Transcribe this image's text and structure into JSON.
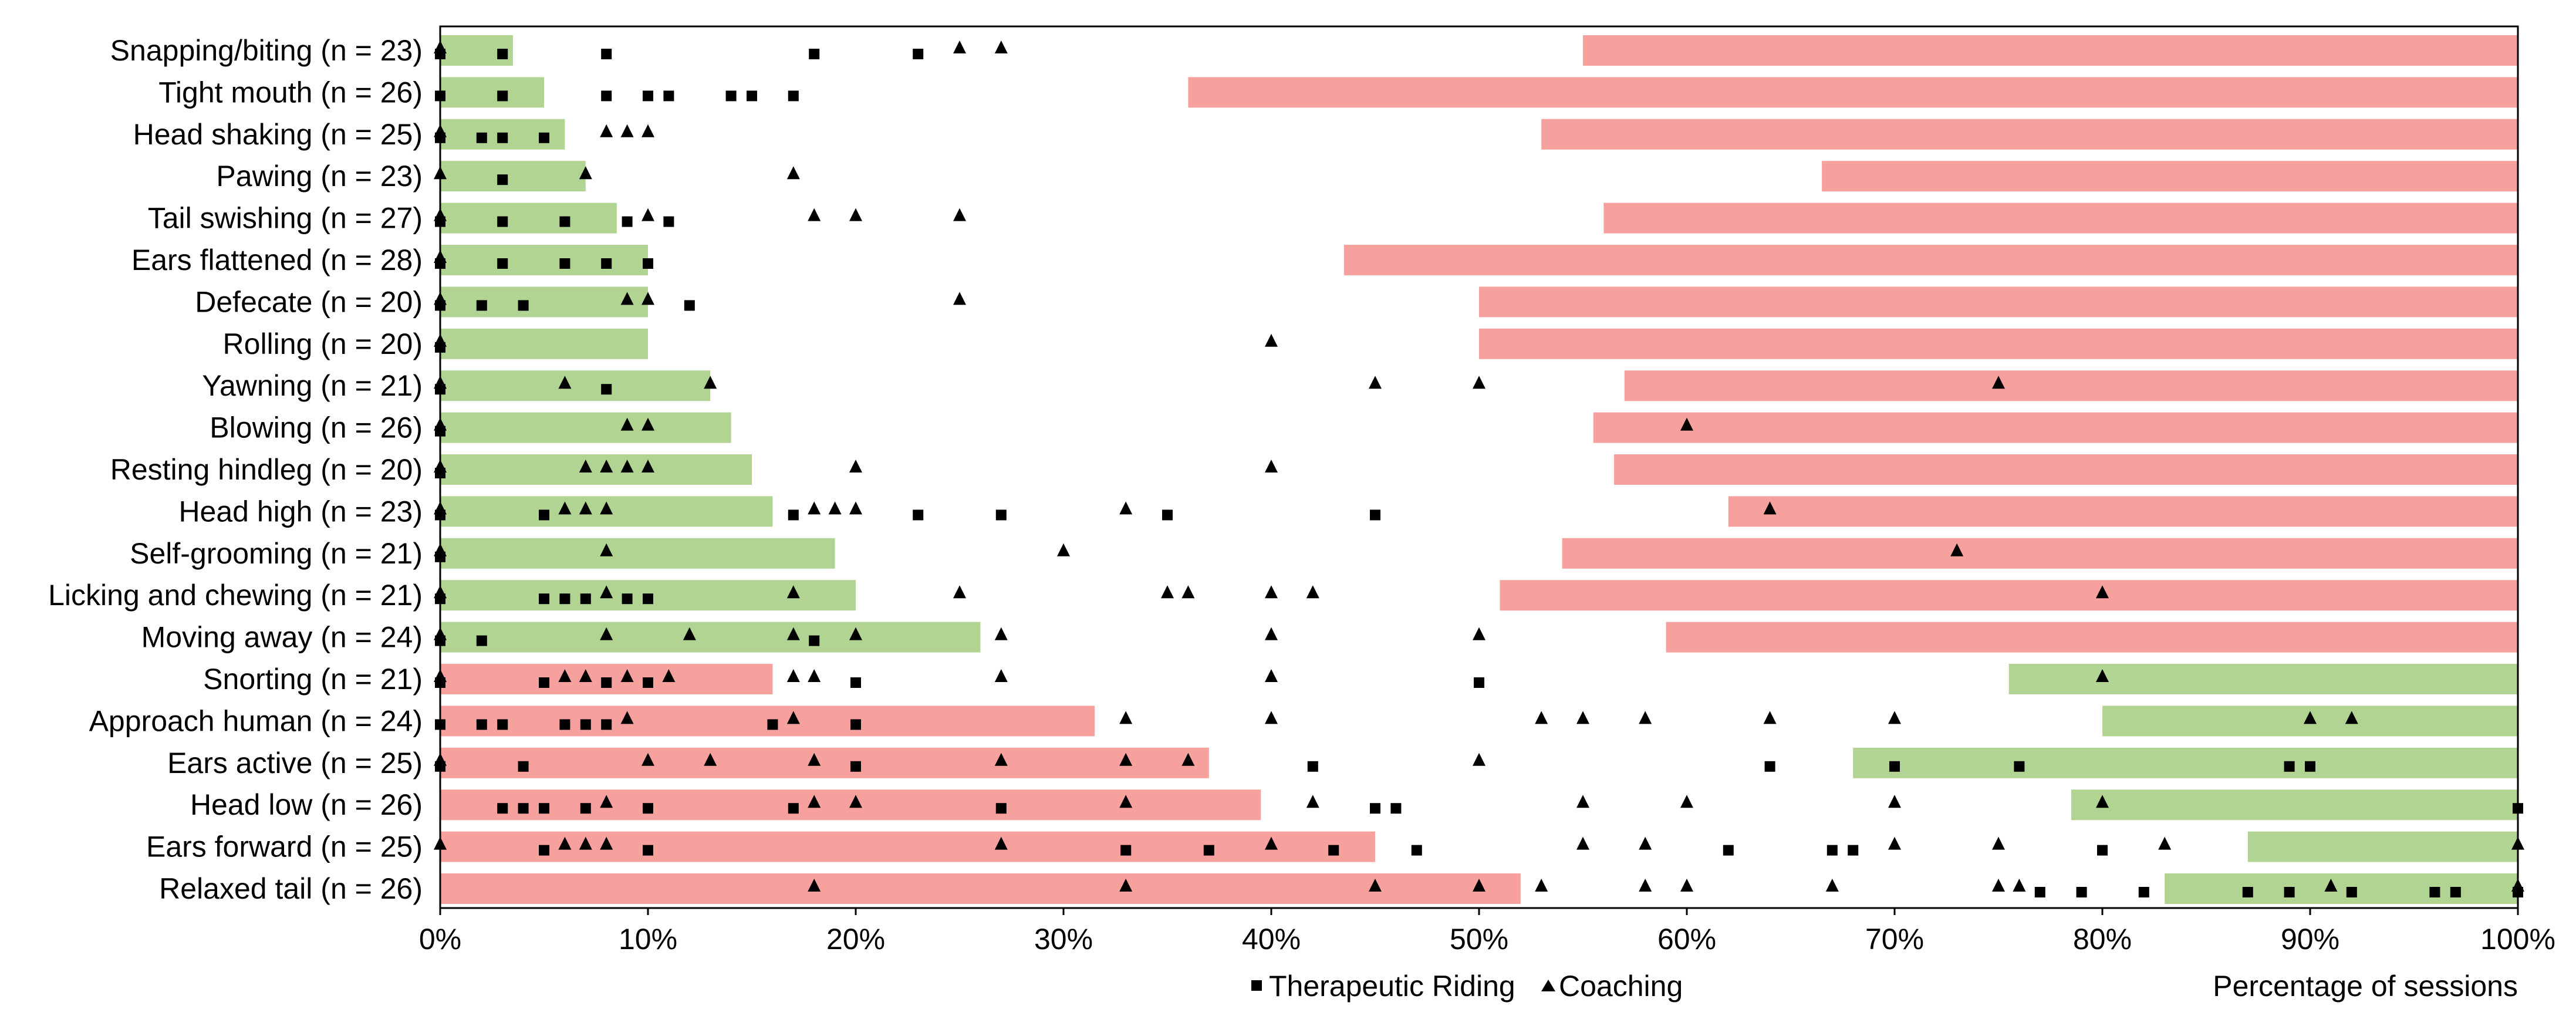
{
  "chart_data": {
    "type": "bar",
    "orientation": "horizontal",
    "xlabel": "Percentage of sessions",
    "xlim": [
      0,
      100
    ],
    "xticks": [
      0,
      10,
      20,
      30,
      40,
      50,
      60,
      70,
      80,
      90,
      100
    ],
    "x_tick_labels": [
      "0%",
      "10%",
      "20%",
      "30%",
      "40%",
      "50%",
      "60%",
      "70%",
      "80%",
      "90%",
      "100%"
    ],
    "grid": false,
    "legend_position": "bottom-center",
    "colors": {
      "green": "#b2d493",
      "red": "#f7a19e",
      "marker": "#000000"
    },
    "series": [
      {
        "name": "Therapeutic Riding",
        "marker": "square-icon"
      },
      {
        "name": "Coaching",
        "marker": "triangle-icon"
      }
    ],
    "categories": [
      {
        "label": "Snapping/biting (n = 23)",
        "left_bar": {
          "value": 3.5,
          "color": "green"
        },
        "right_bar": {
          "start": 55,
          "color": "red"
        },
        "riding": [
          0,
          3,
          8,
          18,
          23
        ],
        "coaching": [
          0,
          25,
          27
        ]
      },
      {
        "label": "Tight mouth (n = 26)",
        "left_bar": {
          "value": 5,
          "color": "green"
        },
        "right_bar": {
          "start": 36,
          "color": "red"
        },
        "riding": [
          0,
          3,
          8,
          10,
          11,
          14,
          15,
          17
        ],
        "coaching": []
      },
      {
        "label": "Head shaking (n = 25)",
        "left_bar": {
          "value": 6,
          "color": "green"
        },
        "right_bar": {
          "start": 53,
          "color": "red"
        },
        "riding": [
          0,
          2,
          3,
          5
        ],
        "coaching": [
          0,
          8,
          9,
          10
        ]
      },
      {
        "label": "Pawing (n = 23)",
        "left_bar": {
          "value": 7,
          "color": "green"
        },
        "right_bar": {
          "start": 66.5,
          "color": "red"
        },
        "riding": [
          3
        ],
        "coaching": [
          0,
          7,
          17
        ]
      },
      {
        "label": "Tail swishing (n = 27)",
        "left_bar": {
          "value": 8.5,
          "color": "green"
        },
        "right_bar": {
          "start": 56,
          "color": "red"
        },
        "riding": [
          0,
          3,
          6,
          9,
          11
        ],
        "coaching": [
          0,
          10,
          18,
          20,
          25
        ]
      },
      {
        "label": "Ears flattened (n = 28)",
        "left_bar": {
          "value": 10,
          "color": "green"
        },
        "right_bar": {
          "start": 43.5,
          "color": "red"
        },
        "riding": [
          0,
          3,
          6,
          8,
          10
        ],
        "coaching": [
          0
        ]
      },
      {
        "label": "Defecate (n = 20)",
        "left_bar": {
          "value": 10,
          "color": "green"
        },
        "right_bar": {
          "start": 50,
          "color": "red"
        },
        "riding": [
          0,
          2,
          4,
          12
        ],
        "coaching": [
          0,
          9,
          10,
          25
        ]
      },
      {
        "label": "Rolling (n = 20)",
        "left_bar": {
          "value": 10,
          "color": "green"
        },
        "right_bar": {
          "start": 50,
          "color": "red"
        },
        "riding": [
          0
        ],
        "coaching": [
          0,
          40
        ]
      },
      {
        "label": "Yawning (n = 21)",
        "left_bar": {
          "value": 13,
          "color": "green"
        },
        "right_bar": {
          "start": 57,
          "color": "red"
        },
        "riding": [
          0,
          8
        ],
        "coaching": [
          0,
          6,
          13,
          45,
          50,
          75
        ]
      },
      {
        "label": "Blowing (n = 26)",
        "left_bar": {
          "value": 14,
          "color": "green"
        },
        "right_bar": {
          "start": 55.5,
          "color": "red"
        },
        "riding": [
          0
        ],
        "coaching": [
          0,
          9,
          10,
          60
        ]
      },
      {
        "label": "Resting hindleg (n = 20)",
        "left_bar": {
          "value": 15,
          "color": "green"
        },
        "right_bar": {
          "start": 56.5,
          "color": "red"
        },
        "riding": [
          0
        ],
        "coaching": [
          0,
          7,
          8,
          9,
          10,
          20,
          40
        ]
      },
      {
        "label": "Head high (n = 23)",
        "left_bar": {
          "value": 16,
          "color": "green"
        },
        "right_bar": {
          "start": 62,
          "color": "red"
        },
        "riding": [
          0,
          5,
          17,
          23,
          27,
          35,
          45
        ],
        "coaching": [
          0,
          6,
          7,
          8,
          18,
          19,
          20,
          33,
          64
        ]
      },
      {
        "label": "Self-grooming (n = 21)",
        "left_bar": {
          "value": 19,
          "color": "green"
        },
        "right_bar": {
          "start": 54,
          "color": "red"
        },
        "riding": [
          0
        ],
        "coaching": [
          0,
          8,
          30,
          73
        ]
      },
      {
        "label": "Licking and chewing (n = 21)",
        "left_bar": {
          "value": 20,
          "color": "green"
        },
        "right_bar": {
          "start": 51,
          "color": "red"
        },
        "riding": [
          0,
          5,
          6,
          7,
          9,
          10
        ],
        "coaching": [
          0,
          8,
          17,
          25,
          35,
          36,
          40,
          42,
          80
        ]
      },
      {
        "label": "Moving away (n = 24)",
        "left_bar": {
          "value": 26,
          "color": "green"
        },
        "right_bar": {
          "start": 59,
          "color": "red"
        },
        "riding": [
          0,
          2,
          18
        ],
        "coaching": [
          0,
          8,
          12,
          17,
          20,
          27,
          40,
          50
        ]
      },
      {
        "label": "Snorting (n = 21)",
        "left_bar": {
          "value": 16,
          "color": "red"
        },
        "right_bar": {
          "start": 75.5,
          "color": "green"
        },
        "riding": [
          0,
          5,
          8,
          10,
          20,
          50
        ],
        "coaching": [
          0,
          6,
          7,
          9,
          11,
          17,
          18,
          27,
          40,
          80
        ]
      },
      {
        "label": "Approach human (n = 24)",
        "left_bar": {
          "value": 31.5,
          "color": "red"
        },
        "right_bar": {
          "start": 80,
          "color": "green"
        },
        "riding": [
          0,
          2,
          3,
          6,
          7,
          8,
          16,
          20
        ],
        "coaching": [
          9,
          17,
          33,
          40,
          53,
          55,
          58,
          64,
          70,
          90,
          92
        ]
      },
      {
        "label": "Ears active (n = 25)",
        "left_bar": {
          "value": 37,
          "color": "red"
        },
        "right_bar": {
          "start": 68,
          "color": "green"
        },
        "riding": [
          0,
          4,
          20,
          42,
          64,
          70,
          76,
          89,
          90
        ],
        "coaching": [
          0,
          10,
          13,
          18,
          27,
          33,
          36,
          50
        ]
      },
      {
        "label": "Head low (n = 26)",
        "left_bar": {
          "value": 39.5,
          "color": "red"
        },
        "right_bar": {
          "start": 78.5,
          "color": "green"
        },
        "riding": [
          3,
          4,
          5,
          7,
          10,
          17,
          27,
          45,
          46,
          100
        ],
        "coaching": [
          8,
          18,
          20,
          33,
          42,
          55,
          60,
          70,
          80
        ]
      },
      {
        "label": "Ears forward (n = 25)",
        "left_bar": {
          "value": 45,
          "color": "red"
        },
        "right_bar": {
          "start": 87,
          "color": "green"
        },
        "riding": [
          5,
          10,
          33,
          37,
          43,
          47,
          62,
          67,
          68,
          80
        ],
        "coaching": [
          0,
          6,
          7,
          8,
          27,
          40,
          55,
          58,
          70,
          75,
          83,
          100
        ]
      },
      {
        "label": "Relaxed tail (n = 26)",
        "left_bar": {
          "value": 52,
          "color": "red"
        },
        "right_bar": {
          "start": 83,
          "color": "green"
        },
        "riding": [
          77,
          79,
          82,
          87,
          89,
          92,
          96,
          97,
          100
        ],
        "coaching": [
          18,
          33,
          45,
          50,
          53,
          58,
          60,
          67,
          75,
          76,
          91,
          100
        ]
      }
    ]
  }
}
